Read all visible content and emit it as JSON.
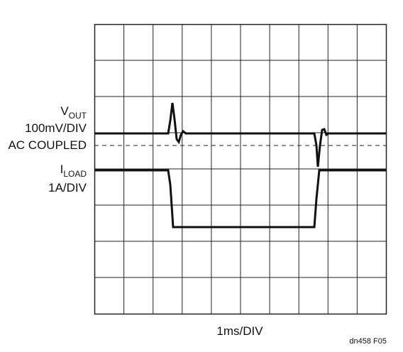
{
  "labels": {
    "vout": {
      "symbol": "V",
      "subscript": "OUT"
    },
    "vout_scale": "100mV/DIV",
    "coupling": "AC COUPLED",
    "iload": {
      "symbol": "I",
      "subscript": "LOAD"
    },
    "iload_scale": "1A/DIV",
    "time_scale": "1ms/DIV"
  },
  "figure_id": "dn458 F05"
}
